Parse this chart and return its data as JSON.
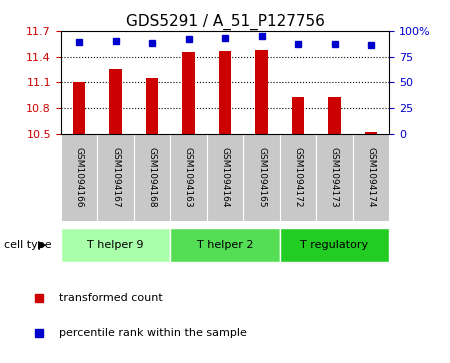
{
  "title": "GDS5291 / A_51_P127756",
  "samples": [
    "GSM1094166",
    "GSM1094167",
    "GSM1094168",
    "GSM1094163",
    "GSM1094164",
    "GSM1094165",
    "GSM1094172",
    "GSM1094173",
    "GSM1094174"
  ],
  "bar_values": [
    11.1,
    11.25,
    11.15,
    11.45,
    11.47,
    11.48,
    10.93,
    10.93,
    10.52
  ],
  "percentile_values": [
    89,
    90,
    88,
    92,
    93,
    95,
    87,
    87,
    86
  ],
  "bar_color": "#cc0000",
  "dot_color": "#0000cc",
  "ylim_left": [
    10.5,
    11.7
  ],
  "ylim_right": [
    0,
    100
  ],
  "yticks_left": [
    10.5,
    10.8,
    11.1,
    11.4,
    11.7
  ],
  "yticks_right": [
    0,
    25,
    50,
    75,
    100
  ],
  "grid_values": [
    10.8,
    11.1,
    11.4
  ],
  "cell_type_groups": [
    {
      "label": "T helper 9",
      "start": 0,
      "end": 3,
      "color": "#aaffaa"
    },
    {
      "label": "T helper 2",
      "start": 3,
      "end": 6,
      "color": "#55dd55"
    },
    {
      "label": "T regulatory",
      "start": 6,
      "end": 9,
      "color": "#22cc22"
    }
  ],
  "cell_type_label": "cell type",
  "legend_bar_label": "transformed count",
  "legend_dot_label": "percentile rank within the sample",
  "background_color": "#ffffff",
  "plot_bg_color": "#ffffff",
  "label_color_left": "#cc0000",
  "label_color_right": "#0000cc",
  "xtick_bg_color": "#c8c8c8",
  "xtick_sep_color": "#ffffff",
  "bar_width": 0.35
}
